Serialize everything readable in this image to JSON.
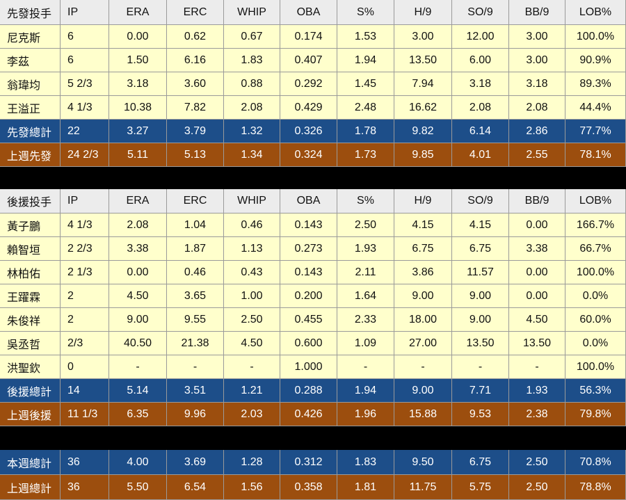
{
  "tables": [
    {
      "header": [
        "先發投手",
        "IP",
        "ERA",
        "ERC",
        "WHIP",
        "OBA",
        "S%",
        "H/9",
        "SO/9",
        "BB/9",
        "LOB%"
      ],
      "rows": [
        [
          "尼克斯",
          "6",
          "0.00",
          "0.62",
          "0.67",
          "0.174",
          "1.53",
          "3.00",
          "12.00",
          "3.00",
          "100.0%"
        ],
        [
          "李茲",
          "6",
          "1.50",
          "6.16",
          "1.83",
          "0.407",
          "1.94",
          "13.50",
          "6.00",
          "3.00",
          "90.9%"
        ],
        [
          "翁瑋均",
          "5 2/3",
          "3.18",
          "3.60",
          "0.88",
          "0.292",
          "1.45",
          "7.94",
          "3.18",
          "3.18",
          "89.3%"
        ],
        [
          "王溢正",
          "4 1/3",
          "10.38",
          "7.82",
          "2.08",
          "0.429",
          "2.48",
          "16.62",
          "2.08",
          "2.08",
          "44.4%"
        ],
        [
          "先發總計",
          "22",
          "3.27",
          "3.79",
          "1.32",
          "0.326",
          "1.78",
          "9.82",
          "6.14",
          "2.86",
          "77.7%"
        ],
        [
          "上週先發",
          "24 2/3",
          "5.11",
          "5.13",
          "1.34",
          "0.324",
          "1.73",
          "9.85",
          "4.01",
          "2.55",
          "78.1%"
        ]
      ]
    },
    {
      "header": [
        "後援投手",
        "IP",
        "ERA",
        "ERC",
        "WHIP",
        "OBA",
        "S%",
        "H/9",
        "SO/9",
        "BB/9",
        "LOB%"
      ],
      "rows": [
        [
          "黃子鵬",
          "4 1/3",
          "2.08",
          "1.04",
          "0.46",
          "0.143",
          "2.50",
          "4.15",
          "4.15",
          "0.00",
          "166.7%"
        ],
        [
          "賴智垣",
          "2 2/3",
          "3.38",
          "1.87",
          "1.13",
          "0.273",
          "1.93",
          "6.75",
          "6.75",
          "3.38",
          "66.7%"
        ],
        [
          "林柏佑",
          "2 1/3",
          "0.00",
          "0.46",
          "0.43",
          "0.143",
          "2.11",
          "3.86",
          "11.57",
          "0.00",
          "100.0%"
        ],
        [
          "王躍霖",
          "2",
          "4.50",
          "3.65",
          "1.00",
          "0.200",
          "1.64",
          "9.00",
          "9.00",
          "0.00",
          "0.0%"
        ],
        [
          "朱俊祥",
          "2",
          "9.00",
          "9.55",
          "2.50",
          "0.455",
          "2.33",
          "18.00",
          "9.00",
          "4.50",
          "60.0%"
        ],
        [
          "吳丞哲",
          "2/3",
          "40.50",
          "21.38",
          "4.50",
          "0.600",
          "1.09",
          "27.00",
          "13.50",
          "13.50",
          "0.0%"
        ],
        [
          "洪聖欽",
          "0",
          "-",
          "-",
          "-",
          "1.000",
          "-",
          "-",
          "-",
          "-",
          "100.0%"
        ],
        [
          "後援總計",
          "14",
          "5.14",
          "3.51",
          "1.21",
          "0.288",
          "1.94",
          "9.00",
          "7.71",
          "1.93",
          "56.3%"
        ],
        [
          "上週後援",
          "11 1/3",
          "6.35",
          "9.96",
          "2.03",
          "0.426",
          "1.96",
          "15.88",
          "9.53",
          "2.38",
          "79.8%"
        ]
      ]
    },
    {
      "rows": [
        [
          "本週總計",
          "36",
          "4.00",
          "3.69",
          "1.28",
          "0.312",
          "1.83",
          "9.50",
          "6.75",
          "2.50",
          "70.8%"
        ],
        [
          "上週總計",
          "36",
          "5.50",
          "6.54",
          "1.56",
          "0.358",
          "1.81",
          "11.75",
          "5.75",
          "2.50",
          "78.8%"
        ]
      ]
    }
  ]
}
